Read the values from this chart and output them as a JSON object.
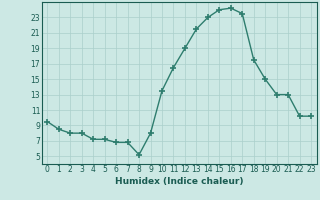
{
  "x": [
    0,
    1,
    2,
    3,
    4,
    5,
    6,
    7,
    8,
    9,
    10,
    11,
    12,
    13,
    14,
    15,
    16,
    17,
    18,
    19,
    20,
    21,
    22,
    23
  ],
  "y": [
    9.5,
    8.5,
    8.0,
    8.0,
    7.2,
    7.2,
    6.8,
    6.8,
    5.2,
    8.0,
    13.5,
    16.5,
    19.0,
    21.5,
    23.0,
    24.0,
    24.2,
    23.5,
    17.5,
    15.0,
    13.0,
    13.0,
    10.2,
    10.2
  ],
  "line_color": "#2e7d6e",
  "marker": "+",
  "marker_size": 4,
  "bg_color": "#cce8e4",
  "grid_color": "#aacfcb",
  "xlabel": "Humidex (Indice chaleur)",
  "xlim": [
    -0.5,
    23.5
  ],
  "ylim": [
    4,
    25
  ],
  "yticks": [
    5,
    7,
    9,
    11,
    13,
    15,
    17,
    19,
    21,
    23
  ],
  "xticks": [
    0,
    1,
    2,
    3,
    4,
    5,
    6,
    7,
    8,
    9,
    10,
    11,
    12,
    13,
    14,
    15,
    16,
    17,
    18,
    19,
    20,
    21,
    22,
    23
  ],
  "tick_label_size": 5.5,
  "xlabel_size": 6.5,
  "axis_color": "#1a5c52",
  "spine_color": "#1a5c52",
  "linewidth": 1.0,
  "marker_thickness": 1.2
}
